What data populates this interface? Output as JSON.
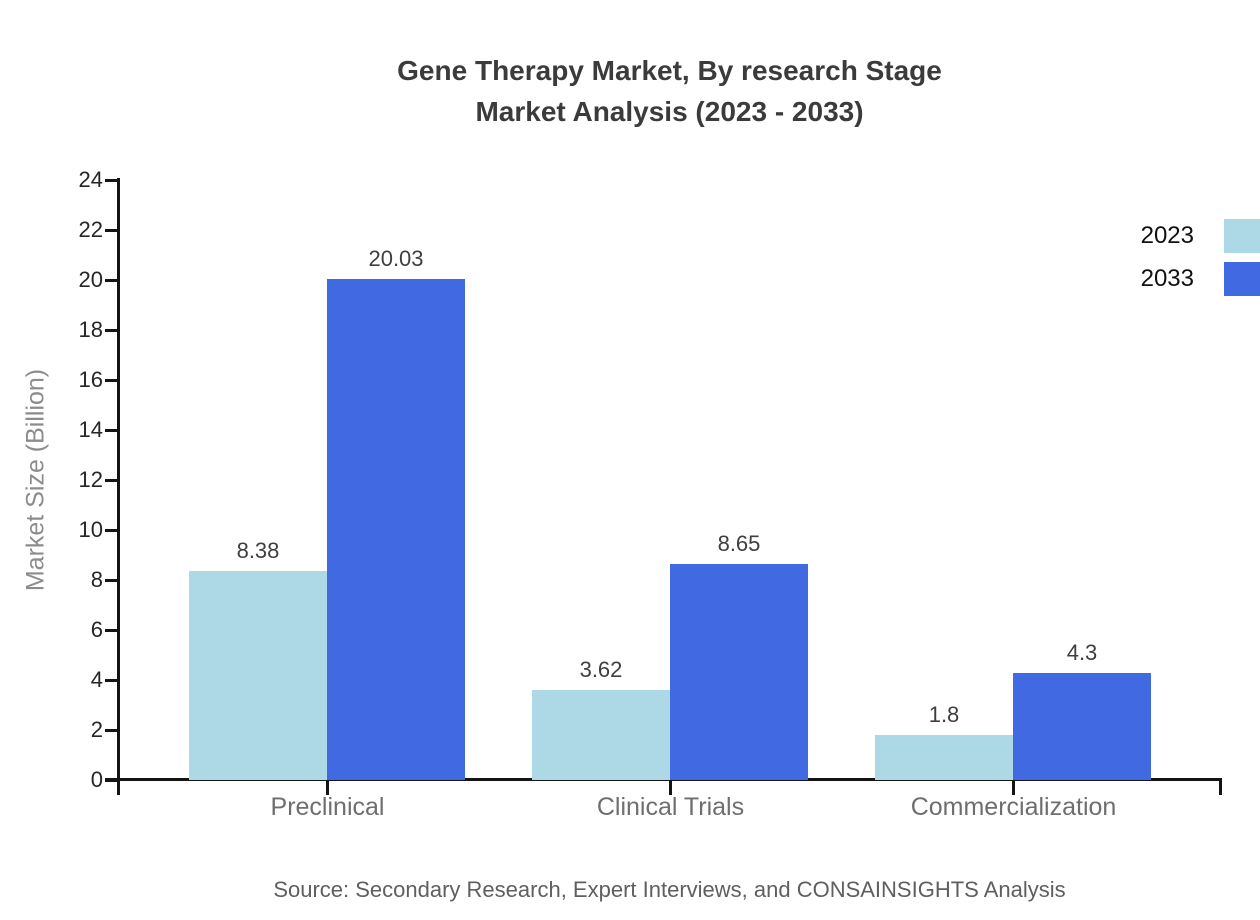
{
  "title": {
    "line1": "Gene Therapy Market, By research Stage",
    "line2": "Market Analysis (2023 - 2033)"
  },
  "chart_data": {
    "type": "bar",
    "categories": [
      "Preclinical",
      "Clinical Trials",
      "Commercialization"
    ],
    "series": [
      {
        "name": "2023",
        "color": "#ADD8E6",
        "values": [
          8.38,
          3.62,
          1.8
        ]
      },
      {
        "name": "2033",
        "color": "#4169E1",
        "values": [
          20.03,
          8.65,
          4.3
        ]
      }
    ],
    "value_labels": {
      "2023": [
        "8.38",
        "3.62",
        "1.8"
      ],
      "2033": [
        "20.03",
        "8.65",
        "4.3"
      ]
    },
    "title": "Gene Therapy Market, By research Stage Market Analysis (2023 - 2033)",
    "xlabel": "",
    "ylabel": "Market Size (Billion)",
    "ylim": [
      0,
      24
    ],
    "ytick_step": 2,
    "grid": false,
    "legend_position": "top-right"
  },
  "source": "Source: Secondary Research, Expert Interviews, and CONSAINSIGHTS Analysis"
}
